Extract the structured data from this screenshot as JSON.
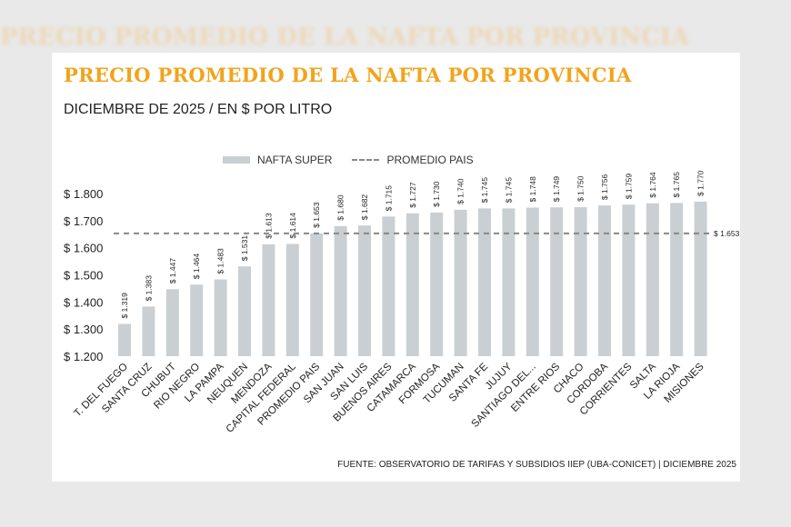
{
  "chart_data": {
    "type": "bar",
    "title": "PRECIO PROMEDIO DE LA NAFTA POR PROVINCIA",
    "subtitle": "DICIEMBRE DE 2025 / EN $ POR LITRO",
    "source": "FUENTE: OBSERVATORIO DE TARIFAS Y SUBSIDIOS IIEP (UBA-CONICET) | DICIEMBRE 2025",
    "legend": [
      "NAFTA SUPER",
      "PROMEDIO PAIS"
    ],
    "legend_placement": "top",
    "categories": [
      "T. DEL FUEGO",
      "SANTA CRUZ",
      "CHUBUT",
      "RIO NEGRO",
      "LA PAMPA",
      "NEUQUEN",
      "MENDOZA",
      "CAPITAL FEDERAL",
      "PROMEDIO PAIS",
      "SAN JUAN",
      "SAN LUIS",
      "BUENOS AIRES",
      "CATAMARCA",
      "FORMOSA",
      "TUCUMAN",
      "SANTA FE",
      "JUJUY",
      "SANTIAGO DEL...",
      "ENTRE RIOS",
      "CHACO",
      "CORDOBA",
      "CORRIENTES",
      "SALTA",
      "LA RIOJA",
      "MISIONES"
    ],
    "values": [
      1319,
      1383,
      1447,
      1464,
      1483,
      1531,
      1613,
      1614,
      1653,
      1680,
      1682,
      1715,
      1727,
      1730,
      1740,
      1745,
      1745,
      1748,
      1749,
      1750,
      1756,
      1759,
      1764,
      1765,
      1770
    ],
    "value_labels": [
      "$ 1.319",
      "$ 1.383",
      "$ 1.447",
      "$ 1.464",
      "$ 1.483",
      "$ 1.531",
      "$ 1.613",
      "$ 1.614",
      "$ 1.653",
      "$ 1.680",
      "$ 1.682",
      "$ 1.715",
      "$ 1.727",
      "$ 1.730",
      "$ 1.740",
      "$ 1.745",
      "$ 1.745",
      "$ 1.748",
      "$ 1.749",
      "$ 1.750",
      "$ 1.756",
      "$ 1.759",
      "$ 1.764",
      "$ 1.765",
      "$ 1.770"
    ],
    "average": 1653,
    "average_label": "$ 1.653",
    "ylim": [
      1200,
      1800
    ],
    "yticks": [
      1200,
      1300,
      1400,
      1500,
      1600,
      1700,
      1800
    ],
    "ytick_labels": [
      "$ 1.200",
      "$ 1.300",
      "$ 1.400",
      "$ 1.500",
      "$ 1.600",
      "$ 1.700",
      "$ 1.800"
    ],
    "grid": false,
    "colors": {
      "bar": "#c9cfd2",
      "average_line": "#888888",
      "title": "#f2a31c"
    }
  }
}
